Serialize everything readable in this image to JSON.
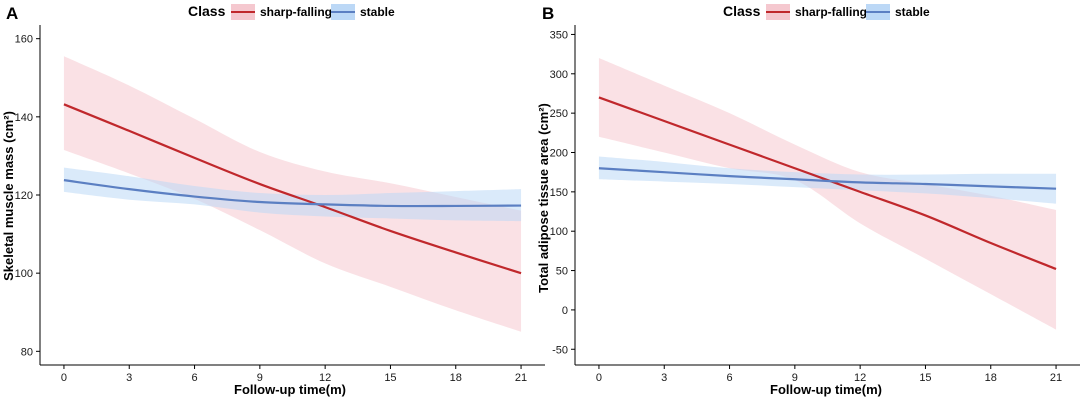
{
  "legend": {
    "title": "Class",
    "entries": [
      {
        "key": "sharp",
        "label": "sharp-falling",
        "line_color": "#c0282c",
        "fill_color": "#f5c8cf"
      },
      {
        "key": "stable",
        "label": "stable",
        "line_color": "#5b7fc2",
        "fill_color": "#bcd8f6"
      }
    ]
  },
  "chart_data": [
    {
      "panel": "A",
      "type": "line",
      "xlabel": "Follow-up time(m)",
      "ylabel": "Skeletal muscle mass (cm²)",
      "xlim": [
        -1.1,
        22.1
      ],
      "ylim": [
        76.5,
        163.5
      ],
      "xticks": [
        0,
        3,
        6,
        9,
        12,
        15,
        18,
        21
      ],
      "yticks": [
        80,
        100,
        120,
        140,
        160
      ],
      "series": [
        {
          "key": "sharp",
          "name": "sharp-falling",
          "x": [
            0,
            3,
            6,
            9,
            12,
            15,
            18,
            21
          ],
          "y": [
            143.2,
            136.4,
            129.5,
            122.8,
            116.9,
            110.8,
            105.3,
            100.0
          ],
          "lower": [
            131.5,
            125.5,
            119.0,
            111.0,
            102.5,
            96.5,
            90.5,
            85.0
          ],
          "upper": [
            155.5,
            148.0,
            139.5,
            131.0,
            126.0,
            123.0,
            119.5,
            116.0
          ]
        },
        {
          "key": "stable",
          "name": "stable",
          "x": [
            0,
            3,
            6,
            9,
            12,
            15,
            18,
            21
          ],
          "y": [
            123.8,
            121.5,
            119.6,
            118.2,
            117.6,
            117.2,
            117.2,
            117.3
          ],
          "lower": [
            120.8,
            118.8,
            117.6,
            115.5,
            114.5,
            114.0,
            113.5,
            113.3
          ],
          "upper": [
            127.0,
            124.8,
            122.3,
            120.5,
            120.0,
            120.5,
            121.0,
            121.5
          ]
        }
      ]
    },
    {
      "panel": "B",
      "type": "line",
      "xlabel": "Follow-up time(m)",
      "ylabel": "Total adipose tissue area (cm²)",
      "xlim": [
        -1.1,
        22.1
      ],
      "ylim": [
        -70,
        362
      ],
      "xticks": [
        0,
        3,
        6,
        9,
        12,
        15,
        18,
        21
      ],
      "yticks": [
        -50,
        0,
        50,
        100,
        150,
        200,
        250,
        300,
        350
      ],
      "series": [
        {
          "key": "sharp",
          "name": "sharp-falling",
          "x": [
            0,
            3,
            6,
            9,
            12,
            15,
            18,
            21
          ],
          "y": [
            270,
            240,
            210,
            180,
            150,
            120,
            85,
            52
          ],
          "lower": [
            220,
            200,
            180,
            165,
            110,
            65,
            20,
            -25
          ],
          "upper": [
            320,
            285,
            250,
            210,
            175,
            160,
            145,
            127
          ]
        },
        {
          "key": "stable",
          "name": "stable",
          "x": [
            0,
            3,
            6,
            9,
            12,
            15,
            18,
            21
          ],
          "y": [
            180,
            175,
            170,
            166,
            162,
            160,
            157,
            154
          ],
          "lower": [
            166,
            163,
            160,
            156,
            152,
            148,
            142,
            135
          ],
          "upper": [
            195,
            188,
            180,
            175,
            172,
            172,
            173,
            173
          ]
        }
      ]
    }
  ]
}
